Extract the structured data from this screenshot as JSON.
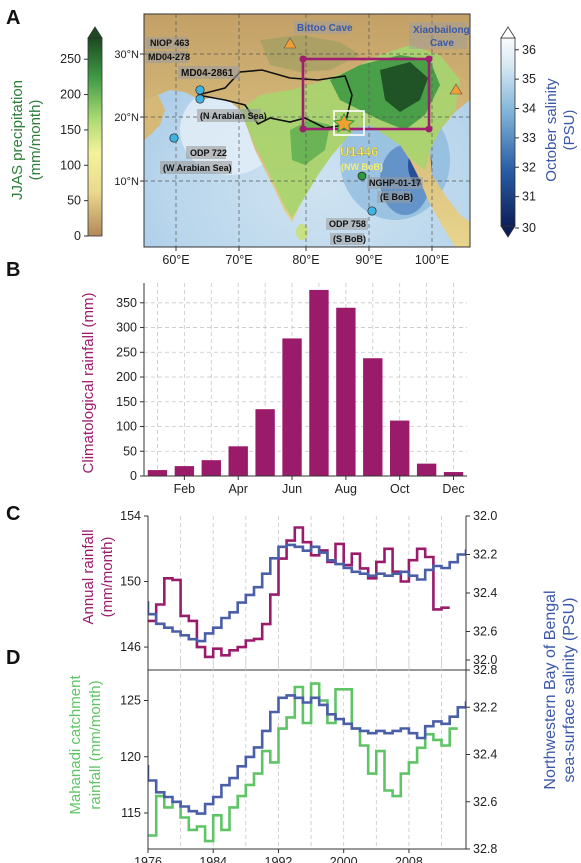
{
  "panel_labels": {
    "a": "A",
    "b": "B",
    "c": "C",
    "d": "D"
  },
  "colors": {
    "magenta": "#9b1b6b",
    "blue": "#4a5fa8",
    "green": "#5fc466",
    "precip_green": "#2e7d3a",
    "salinity_blue": "#3b58a8"
  },
  "panel_a": {
    "precip_colorbar": {
      "label_line1": "JJAS precipitation",
      "label_line2": "(mm/month)",
      "ticks": [
        "0",
        "50",
        "100",
        "150",
        "200",
        "250"
      ],
      "range": [
        0,
        280
      ]
    },
    "salinity_colorbar": {
      "label_line1": "October salinity",
      "label_line2": "(PSU)",
      "ticks": [
        "30",
        "31",
        "32",
        "33",
        "34",
        "35",
        "36"
      ],
      "range": [
        30,
        36.4
      ]
    },
    "lon_ticks": [
      "60°E",
      "70°E",
      "80°E",
      "90°E",
      "100°E"
    ],
    "lat_ticks": [
      "10°N",
      "20°N",
      "30°N"
    ],
    "sites": {
      "niop": "NIOP 463",
      "md04_278": "MD04-278",
      "md04_2861": "MD04-2861",
      "n_arabian": "(N Arabian Sea)",
      "odp722": "ODP 722",
      "w_arabian": "(W Arabian Sea)",
      "u1446": "U1446",
      "nw_bob": "(NW BoB)",
      "nghp": "NGHP-01-17",
      "e_bob": "(E BoB)",
      "odp758": "ODP 758",
      "s_bob": "(S BoB)",
      "bittoo": "Bittoo Cave",
      "xiaobailong_line1": "Xiaobailong",
      "xiaobailong_line2": "Cave"
    }
  },
  "chart_data": [
    {
      "id": "B",
      "type": "bar",
      "ylabel": "Climatological rainfall (mm)",
      "categories": [
        "Jan",
        "Feb",
        "Mar",
        "Apr",
        "May",
        "Jun",
        "Jul",
        "Aug",
        "Sep",
        "Oct",
        "Nov",
        "Dec"
      ],
      "values": [
        12,
        20,
        32,
        60,
        135,
        278,
        376,
        340,
        238,
        112,
        25,
        8
      ],
      "xtick_labels": [
        "Feb",
        "Apr",
        "Jun",
        "Aug",
        "Oct",
        "Dec"
      ],
      "yticks": [
        "0",
        "50",
        "100",
        "150",
        "200",
        "250",
        "300",
        "350"
      ],
      "ylim": [
        0,
        390
      ],
      "grid": true
    },
    {
      "id": "C",
      "type": "line",
      "ylabel_left_line1": "Annual rainfall",
      "ylabel_left_line2": "(mm/month)",
      "left_ylim": [
        144.6,
        154
      ],
      "left_yticks": [
        "146",
        "150",
        "154"
      ],
      "right_ylim": [
        32.0,
        32.8
      ],
      "right_inverted": true,
      "right_yticks": [
        "32.0",
        "32.2",
        "32.4",
        "32.6",
        "32.8"
      ],
      "xlim": [
        1976,
        2015
      ],
      "grid": true,
      "series": [
        {
          "axis": "left",
          "color": "#9b1b6b",
          "x": [
            1976,
            1977,
            1978,
            1979,
            1980,
            1981,
            1982,
            1983,
            1984,
            1985,
            1986,
            1987,
            1988,
            1989,
            1990,
            1991,
            1992,
            1993,
            1994,
            1995,
            1996,
            1997,
            1998,
            1999,
            2000,
            2001,
            2002,
            2003,
            2004,
            2005,
            2006,
            2007,
            2008,
            2009,
            2010,
            2011,
            2012
          ],
          "y": [
            147.6,
            148.6,
            150.2,
            150.1,
            147.9,
            147.6,
            146.0,
            145.4,
            145.9,
            145.5,
            145.8,
            146.0,
            146.4,
            146.5,
            147.4,
            149.2,
            151.4,
            152.5,
            153.3,
            152.4,
            151.6,
            151.9,
            151.2,
            152.3,
            151.0,
            151.7,
            150.8,
            150.2,
            151.2,
            152.0,
            150.6,
            150.0,
            151.3,
            152.0,
            151.5,
            148.3,
            148.4
          ]
        },
        {
          "axis": "right",
          "color": "#4a5fa8",
          "x": [
            1975,
            1976,
            1977,
            1978,
            1979,
            1980,
            1981,
            1982,
            1983,
            1984,
            1985,
            1986,
            1987,
            1988,
            1989,
            1990,
            1991,
            1992,
            1993,
            1994,
            1995,
            1996,
            1997,
            1998,
            1999,
            2000,
            2001,
            2002,
            2003,
            2004,
            2005,
            2006,
            2007,
            2008,
            2009,
            2010,
            2011,
            2012,
            2013,
            2014,
            2015
          ],
          "y": [
            32.45,
            32.51,
            32.56,
            32.58,
            32.6,
            32.62,
            32.64,
            32.65,
            32.61,
            32.58,
            32.53,
            32.5,
            32.45,
            32.41,
            32.37,
            32.3,
            32.22,
            32.16,
            32.15,
            32.16,
            32.18,
            32.16,
            32.19,
            32.23,
            32.25,
            32.27,
            32.29,
            32.3,
            32.31,
            32.3,
            32.31,
            32.3,
            32.29,
            32.31,
            32.33,
            32.28,
            32.26,
            32.27,
            32.24,
            32.2,
            32.18
          ]
        }
      ]
    },
    {
      "id": "D",
      "type": "line",
      "ylabel_left_line1": "Mahanadi catchment",
      "ylabel_left_line2": "rainfall (mm/month)",
      "left_ylim": [
        111.8,
        128.6
      ],
      "left_yticks": [
        "115",
        "120",
        "125"
      ],
      "right_ylim": [
        32.0,
        32.8
      ],
      "right_inverted": true,
      "right_yticks": [
        "32.0",
        "32.2",
        "32.4",
        "32.6",
        "32.8"
      ],
      "right_shared_label_line1": "Northwestern Bay of Bengal",
      "right_shared_label_line2": "sea-surface salinity (PSU)",
      "xlim": [
        1976,
        2015
      ],
      "xticks": [
        1976,
        1984,
        1992,
        2000,
        2008
      ],
      "xtick_labels": [
        "1976",
        "1984",
        "1992",
        "2000",
        "2008"
      ],
      "grid": true,
      "series": [
        {
          "axis": "left",
          "color": "#5fc466",
          "x": [
            1976,
            1977,
            1978,
            1979,
            1980,
            1981,
            1982,
            1983,
            1984,
            1985,
            1986,
            1987,
            1988,
            1989,
            1990,
            1991,
            1992,
            1993,
            1994,
            1995,
            1996,
            1997,
            1998,
            1999,
            2000,
            2001,
            2002,
            2003,
            2004,
            2005,
            2006,
            2007,
            2008,
            2009,
            2010,
            2011,
            2012,
            2013
          ],
          "y": [
            113.0,
            116.5,
            115.5,
            116.0,
            114.6,
            113.5,
            113.8,
            112.5,
            114.8,
            113.5,
            115.5,
            116.5,
            117.5,
            118.5,
            120.5,
            119.5,
            122.5,
            123.5,
            126.2,
            123.0,
            126.5,
            125.0,
            123.0,
            126.0,
            126.0,
            122.5,
            121.0,
            118.5,
            120.5,
            117.0,
            116.5,
            118.5,
            119.5,
            120.8,
            122.0,
            121.5,
            121.0,
            122.5
          ]
        },
        {
          "axis": "right",
          "color": "#4a5fa8",
          "x": [
            1975,
            1976,
            1977,
            1978,
            1979,
            1980,
            1981,
            1982,
            1983,
            1984,
            1985,
            1986,
            1987,
            1988,
            1989,
            1990,
            1991,
            1992,
            1993,
            1994,
            1995,
            1996,
            1997,
            1998,
            1999,
            2000,
            2001,
            2002,
            2003,
            2004,
            2005,
            2006,
            2007,
            2008,
            2009,
            2010,
            2011,
            2012,
            2013,
            2014,
            2015
          ],
          "y": [
            32.45,
            32.51,
            32.56,
            32.58,
            32.6,
            32.62,
            32.64,
            32.65,
            32.61,
            32.58,
            32.53,
            32.5,
            32.45,
            32.41,
            32.37,
            32.3,
            32.22,
            32.16,
            32.15,
            32.16,
            32.18,
            32.16,
            32.19,
            32.23,
            32.25,
            32.27,
            32.29,
            32.3,
            32.31,
            32.3,
            32.31,
            32.3,
            32.29,
            32.31,
            32.33,
            32.28,
            32.26,
            32.27,
            32.24,
            32.2,
            32.18
          ]
        }
      ]
    }
  ]
}
